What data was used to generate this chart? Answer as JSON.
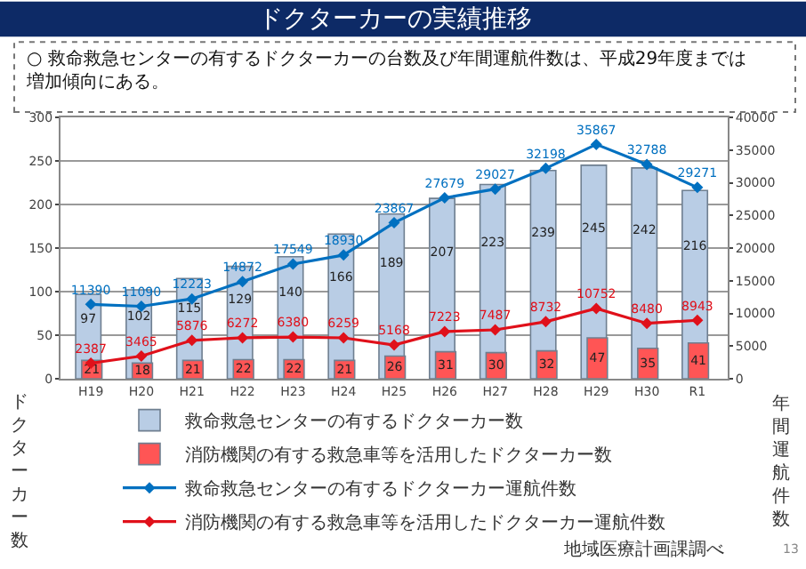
{
  "chart_data": {
    "type": "bar",
    "title": "ドクターカーの実績推移",
    "subtitle": "○ 救命救急センターの有するドクターカーの台数及び年間運航件数は、平成29年度までは増加傾向にある。",
    "ylabel": "ドクターカー数",
    "y2label": "年間運航件数",
    "categories": [
      "H19",
      "H20",
      "H21",
      "H22",
      "H23",
      "H24",
      "H25",
      "H26",
      "H27",
      "H28",
      "H29",
      "H30",
      "R1"
    ],
    "series": [
      {
        "name": "救命救急センターの有するドクターカー数",
        "color": "#b9cde5",
        "values": [
          97,
          102,
          115,
          129,
          140,
          166,
          189,
          207,
          223,
          239,
          245,
          242,
          216
        ]
      },
      {
        "name": "消防機関の有する救急車等を活用したドクターカー数",
        "color": "#ff5555",
        "values": [
          21,
          18,
          21,
          22,
          22,
          21,
          26,
          31,
          30,
          32,
          47,
          35,
          41
        ]
      },
      {
        "name": "救命救急センターの有するドクターカー運航件数",
        "type": "line",
        "axis": "y2",
        "color": "#0070c0",
        "values": [
          11390,
          11090,
          12223,
          14872,
          17549,
          18930,
          23867,
          27679,
          29027,
          32198,
          35867,
          32788,
          29271
        ]
      },
      {
        "name": "消防機関の有する救急車等を活用したドクターカー運航件数",
        "type": "line",
        "axis": "y2",
        "color": "#e0101a",
        "values": [
          2387,
          3465,
          5876,
          6272,
          6380,
          6259,
          5168,
          7223,
          7487,
          8732,
          10752,
          8480,
          8943
        ]
      }
    ],
    "ylim": [
      0,
      300
    ],
    "yticks": [
      0,
      50,
      100,
      150,
      200,
      250,
      300
    ],
    "y2lim": [
      0,
      40000
    ],
    "y2ticks": [
      0,
      5000,
      10000,
      15000,
      20000,
      25000,
      30000,
      35000,
      40000
    ],
    "grid": "y",
    "legend": "bottom",
    "marker": "diamond",
    "line_style": "solid",
    "data_labels": true,
    "annotations": [
      "地域医療計画課調べ",
      "13"
    ]
  }
}
